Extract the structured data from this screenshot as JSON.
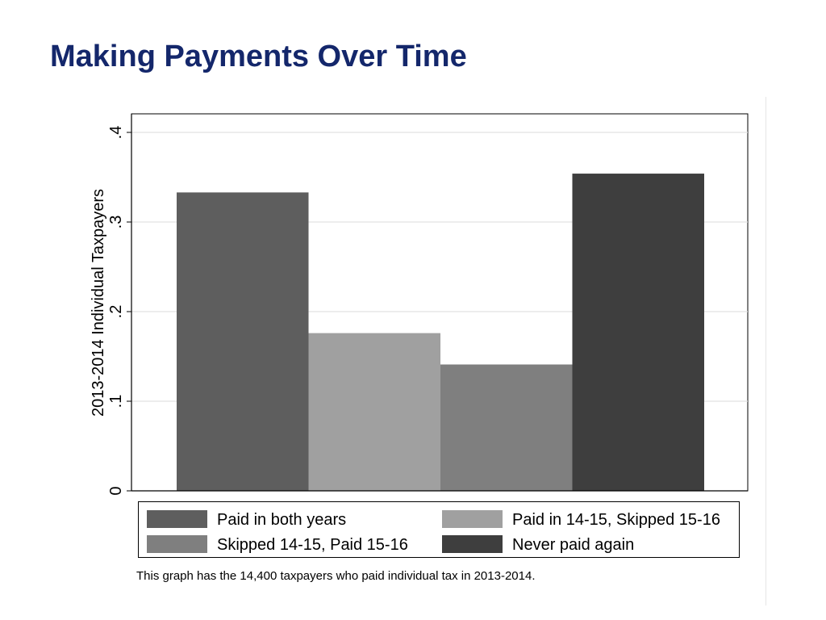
{
  "slide": {
    "title": "Making Payments Over Time",
    "caption": "This graph has the 14,400 taxpayers who paid individual tax in 2013-2014."
  },
  "chart_data": {
    "type": "bar",
    "title": "",
    "ylabel": "2013-2014 Individual Taxpayers",
    "xlabel": "",
    "ylim": [
      0,
      0.4
    ],
    "yticks": [
      0,
      0.1,
      0.2,
      0.3,
      0.4
    ],
    "ytick_labels": [
      "0",
      ".1",
      ".2",
      ".3",
      ".4"
    ],
    "grid": true,
    "legend_position": "bottom",
    "series": [
      {
        "name": "Paid in both years",
        "value": 0.333,
        "color": "#5e5e5e"
      },
      {
        "name": "Paid in 14-15, Skipped 15-16",
        "value": 0.176,
        "color": "#a0a0a0"
      },
      {
        "name": "Skipped 14-15, Paid 15-16",
        "value": 0.141,
        "color": "#7f7f7f"
      },
      {
        "name": "Never paid again",
        "value": 0.354,
        "color": "#3e3e3e"
      }
    ]
  }
}
